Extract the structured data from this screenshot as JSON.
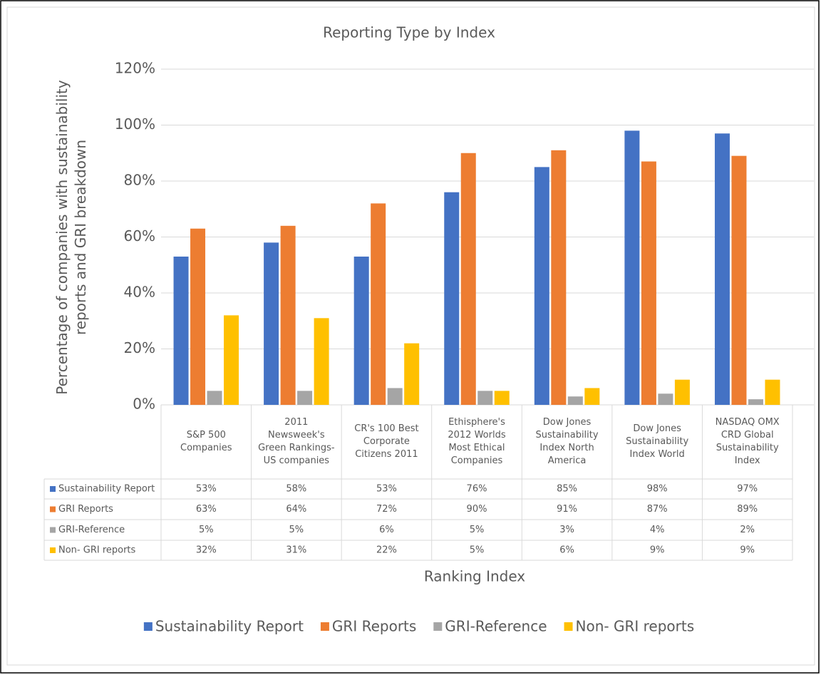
{
  "chart_data": {
    "type": "bar",
    "title": "Reporting Type by Index",
    "y_label": "Percentage of companies with sustainability reports and GRI breakdown",
    "x_label": "Ranking Index",
    "categories": [
      "S&P 500 Companies",
      "2011 Newsweek's Green Rankings- US companies",
      "CR's 100 Best Corporate Citizens 2011",
      "Ethisphere's 2012 Worlds Most Ethical Companies",
      "Dow Jones Sustainability Index North America",
      "Dow Jones Sustainability Index World",
      "NASDAQ OMX CRD Global Sustainability Index"
    ],
    "series": [
      {
        "name": "Sustainability Report",
        "color": "#4472c4",
        "values": [
          53,
          58,
          53,
          76,
          85,
          98,
          97
        ],
        "value_labels": [
          "53%",
          "58%",
          "53%",
          "76%",
          "85%",
          "98%",
          "97%"
        ]
      },
      {
        "name": "GRI Reports",
        "color": "#ed7d31",
        "values": [
          63,
          64,
          72,
          90,
          91,
          87,
          89
        ],
        "value_labels": [
          "63%",
          "64%",
          "72%",
          "90%",
          "91%",
          "87%",
          "89%"
        ]
      },
      {
        "name": "GRI-Reference",
        "color": "#a5a5a5",
        "values": [
          5,
          5,
          6,
          5,
          3,
          4,
          2
        ],
        "value_labels": [
          "5%",
          "5%",
          "6%",
          "5%",
          "3%",
          "4%",
          "2%"
        ]
      },
      {
        "name": "Non- GRI reports",
        "color": "#ffc000",
        "values": [
          32,
          31,
          22,
          5,
          6,
          9,
          9
        ],
        "value_labels": [
          "32%",
          "31%",
          "22%",
          "5%",
          "6%",
          "9%",
          "9%"
        ]
      }
    ],
    "ylim": [
      0,
      120
    ],
    "yticks": [
      {
        "value": 0,
        "label": "0%"
      },
      {
        "value": 20,
        "label": "20%"
      },
      {
        "value": 40,
        "label": "40%"
      },
      {
        "value": 60,
        "label": "60%"
      },
      {
        "value": 80,
        "label": "80%"
      },
      {
        "value": 100,
        "label": "100%"
      },
      {
        "value": 120,
        "label": "120%"
      }
    ],
    "grid": true,
    "legend": "bottom"
  }
}
